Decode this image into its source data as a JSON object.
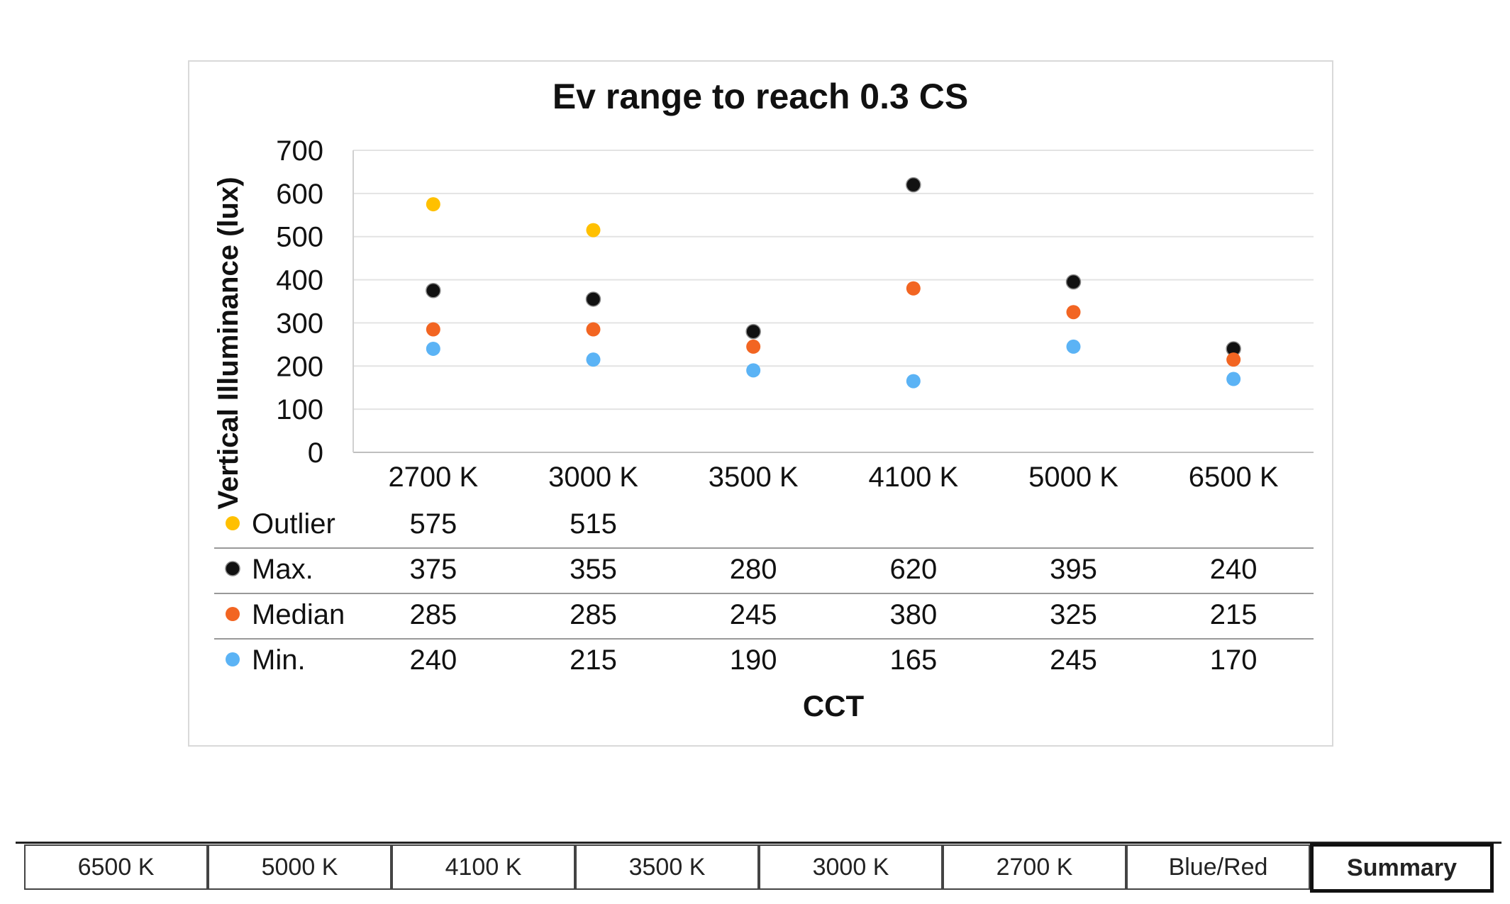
{
  "chart_data": {
    "type": "scatter",
    "title": "Ev range to reach 0.3 CS",
    "xlabel": "CCT",
    "ylabel": "Vertical Illuminance (lux)",
    "categories": [
      "2700 K",
      "3000 K",
      "3500 K",
      "4100 K",
      "5000 K",
      "6500 K"
    ],
    "ylim": [
      0,
      700
    ],
    "yticks": [
      "0",
      "100",
      "200",
      "300",
      "400",
      "500",
      "600",
      "700"
    ],
    "grid": true,
    "series": [
      {
        "name": "Outlier",
        "color": "#FFC000",
        "values": [
          575,
          515,
          null,
          null,
          null,
          null
        ]
      },
      {
        "name": "Max.",
        "color": "#111111",
        "values": [
          375,
          355,
          280,
          620,
          395,
          240
        ]
      },
      {
        "name": "Median",
        "color": "#F26522",
        "values": [
          285,
          285,
          245,
          380,
          325,
          215
        ]
      },
      {
        "name": "Min.",
        "color": "#5BB3F5",
        "values": [
          240,
          215,
          190,
          165,
          245,
          170
        ]
      }
    ],
    "table": {
      "rows": [
        {
          "label": "Outlier",
          "values": [
            "575",
            "515",
            "",
            "",
            "",
            ""
          ]
        },
        {
          "label": "Max.",
          "values": [
            "375",
            "355",
            "280",
            "620",
            "395",
            "240"
          ]
        },
        {
          "label": "Median",
          "values": [
            "285",
            "285",
            "245",
            "380",
            "325",
            "215"
          ]
        },
        {
          "label": "Min.",
          "values": [
            "240",
            "215",
            "190",
            "165",
            "245",
            "170"
          ]
        }
      ]
    }
  },
  "tabs": {
    "items": [
      {
        "label": "6500 K"
      },
      {
        "label": "5000 K"
      },
      {
        "label": "4100 K"
      },
      {
        "label": "3500 K"
      },
      {
        "label": "3000 K"
      },
      {
        "label": "2700 K"
      },
      {
        "label": "Blue/Red"
      },
      {
        "label": "Summary"
      }
    ],
    "active": "Summary"
  }
}
